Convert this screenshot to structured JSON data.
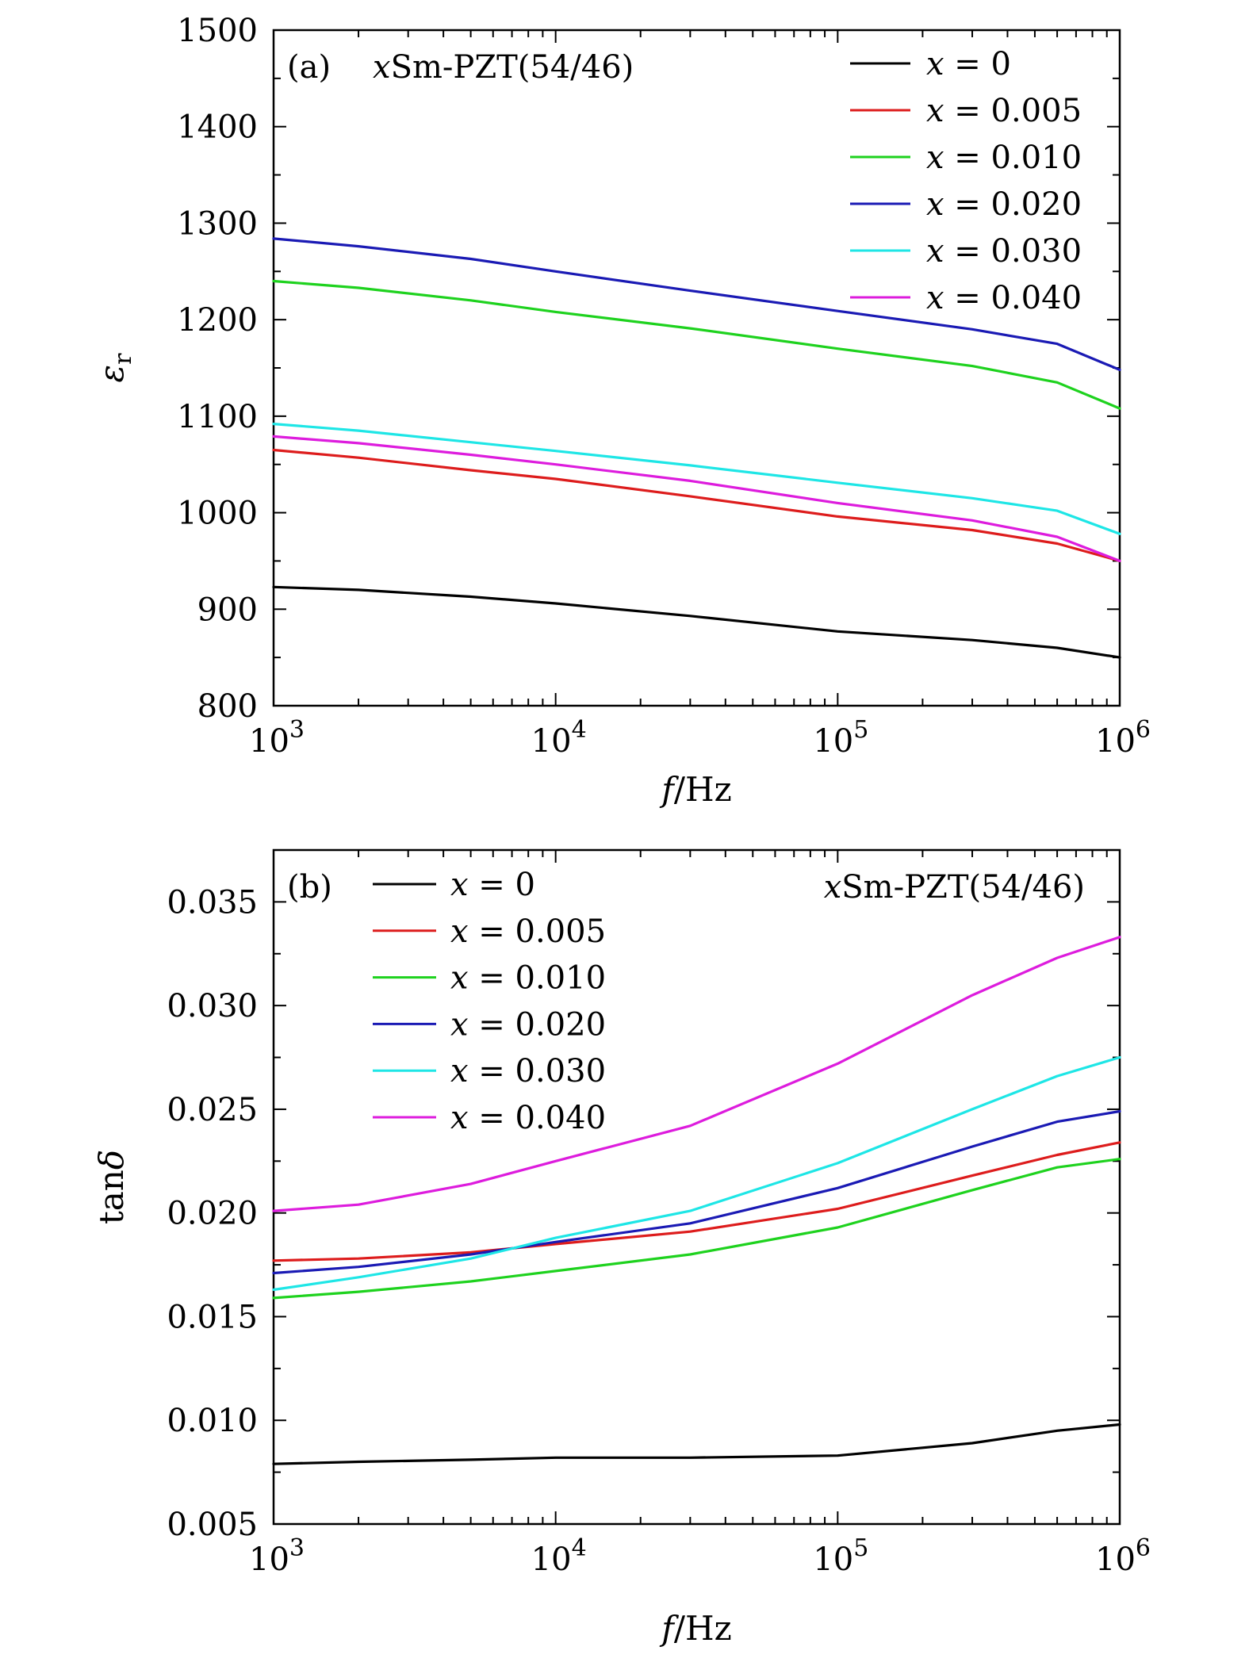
{
  "chart_data": [
    {
      "type": "line",
      "panel_label": "(a)",
      "annotation": "xSm-PZT(54/46)",
      "xlabel": "f/Hz",
      "ylabel": "εr",
      "xscale": "log",
      "xlim": [
        1000,
        1000000
      ],
      "ylim": [
        800,
        1500
      ],
      "x_ticks": [
        1000,
        10000,
        100000,
        1000000
      ],
      "x_tick_labels": [
        {
          "base": "10",
          "exp": "3"
        },
        {
          "base": "10",
          "exp": "4"
        },
        {
          "base": "10",
          "exp": "5"
        },
        {
          "base": "10",
          "exp": "6"
        }
      ],
      "y_ticks": [
        800,
        900,
        1000,
        1100,
        1200,
        1300,
        1400,
        1500
      ],
      "y_tick_labels": [
        "800",
        "900",
        "1000",
        "1100",
        "1200",
        "1300",
        "1400",
        "1500"
      ],
      "legend_position": "top-right",
      "x": [
        1000,
        2000,
        5000,
        10000,
        30000,
        100000,
        300000,
        600000,
        1000000
      ],
      "series": [
        {
          "name": "x = 0",
          "color": "#000000",
          "values": [
            923,
            920,
            913,
            906,
            893,
            877,
            868,
            860,
            850
          ]
        },
        {
          "name": "x = 0.005",
          "color": "#dd1c1c",
          "values": [
            1065,
            1057,
            1044,
            1035,
            1017,
            996,
            982,
            968,
            950
          ]
        },
        {
          "name": "x = 0.010",
          "color": "#1ed21e",
          "values": [
            1240,
            1233,
            1220,
            1208,
            1191,
            1170,
            1152,
            1135,
            1108
          ]
        },
        {
          "name": "x = 0.020",
          "color": "#1a1ab4",
          "values": [
            1284,
            1276,
            1263,
            1250,
            1230,
            1209,
            1190,
            1175,
            1148
          ]
        },
        {
          "name": "x = 0.030",
          "color": "#1ee6e6",
          "values": [
            1092,
            1085,
            1073,
            1064,
            1049,
            1031,
            1015,
            1002,
            978
          ]
        },
        {
          "name": "x = 0.040",
          "color": "#dd1cdd",
          "values": [
            1079,
            1072,
            1060,
            1050,
            1033,
            1010,
            992,
            975,
            950
          ]
        }
      ]
    },
    {
      "type": "line",
      "panel_label": "(b)",
      "annotation": "xSm-PZT(54/46)",
      "xlabel": "f/Hz",
      "ylabel": "tanδ",
      "xscale": "log",
      "xlim": [
        1000,
        1000000
      ],
      "ylim": [
        0.005,
        0.0375
      ],
      "x_ticks": [
        1000,
        10000,
        100000,
        1000000
      ],
      "x_tick_labels": [
        {
          "base": "10",
          "exp": "3"
        },
        {
          "base": "10",
          "exp": "4"
        },
        {
          "base": "10",
          "exp": "5"
        },
        {
          "base": "10",
          "exp": "6"
        }
      ],
      "y_ticks": [
        0.005,
        0.01,
        0.015,
        0.02,
        0.025,
        0.03,
        0.035
      ],
      "y_tick_labels": [
        "0.005",
        "0.010",
        "0.015",
        "0.020",
        "0.025",
        "0.030",
        "0.035"
      ],
      "legend_position": "top-left",
      "x": [
        1000,
        2000,
        5000,
        10000,
        30000,
        100000,
        300000,
        600000,
        1000000
      ],
      "series": [
        {
          "name": "x = 0",
          "color": "#000000",
          "values": [
            0.0079,
            0.008,
            0.0081,
            0.0082,
            0.0082,
            0.0083,
            0.0089,
            0.0095,
            0.0098
          ]
        },
        {
          "name": "x = 0.005",
          "color": "#dd1c1c",
          "values": [
            0.0177,
            0.0178,
            0.0181,
            0.0185,
            0.0191,
            0.0202,
            0.0218,
            0.0228,
            0.0234
          ]
        },
        {
          "name": "x = 0.010",
          "color": "#1ed21e",
          "values": [
            0.0159,
            0.0162,
            0.0167,
            0.0172,
            0.018,
            0.0193,
            0.0211,
            0.0222,
            0.0226
          ]
        },
        {
          "name": "x = 0.020",
          "color": "#1a1ab4",
          "values": [
            0.0171,
            0.0174,
            0.018,
            0.0186,
            0.0195,
            0.0212,
            0.0232,
            0.0244,
            0.0249
          ]
        },
        {
          "name": "x = 0.030",
          "color": "#1ee6e6",
          "values": [
            0.0163,
            0.0169,
            0.0178,
            0.0188,
            0.0201,
            0.0224,
            0.025,
            0.0266,
            0.0275
          ]
        },
        {
          "name": "x = 0.040",
          "color": "#dd1cdd",
          "values": [
            0.0201,
            0.0204,
            0.0214,
            0.0225,
            0.0242,
            0.0272,
            0.0305,
            0.0323,
            0.0333
          ]
        }
      ]
    }
  ]
}
